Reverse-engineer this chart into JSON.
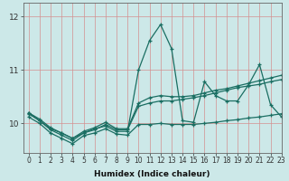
{
  "xlabel": "Humidex (Indice chaleur)",
  "xlim": [
    -0.5,
    23
  ],
  "ylim": [
    9.45,
    12.25
  ],
  "yticks": [
    10,
    11,
    12
  ],
  "xticks": [
    0,
    1,
    2,
    3,
    4,
    5,
    6,
    7,
    8,
    9,
    10,
    11,
    12,
    13,
    14,
    15,
    16,
    17,
    18,
    19,
    20,
    21,
    22,
    23
  ],
  "bg_color": "#cce8e8",
  "vgrid_color": "#d49090",
  "hgrid_color": "#d49090",
  "line_color": "#1a6e62",
  "line1": [
    10.2,
    10.05,
    9.9,
    9.82,
    9.72,
    9.82,
    9.9,
    9.95,
    9.85,
    9.85,
    11.0,
    11.55,
    11.85,
    11.4,
    10.05,
    10.02,
    10.78,
    10.52,
    10.42,
    10.42,
    10.72,
    11.1,
    10.35,
    10.12
  ],
  "line2": [
    10.2,
    10.08,
    9.92,
    9.82,
    9.72,
    9.85,
    9.92,
    10.02,
    9.9,
    9.9,
    10.38,
    10.48,
    10.52,
    10.5,
    10.5,
    10.52,
    10.57,
    10.62,
    10.65,
    10.7,
    10.75,
    10.8,
    10.85,
    10.9
  ],
  "line3": [
    10.18,
    10.05,
    9.88,
    9.78,
    9.68,
    9.82,
    9.88,
    9.98,
    9.88,
    9.88,
    10.32,
    10.38,
    10.42,
    10.42,
    10.45,
    10.48,
    10.52,
    10.57,
    10.62,
    10.67,
    10.7,
    10.73,
    10.78,
    10.82
  ],
  "line4": [
    10.12,
    10.0,
    9.82,
    9.72,
    9.62,
    9.77,
    9.82,
    9.9,
    9.8,
    9.78,
    9.98,
    9.98,
    10.0,
    9.98,
    9.98,
    9.98,
    10.0,
    10.02,
    10.05,
    10.07,
    10.1,
    10.12,
    10.15,
    10.18
  ],
  "marker_size": 3,
  "linewidth": 0.9,
  "tick_fontsize": 5.5,
  "xlabel_fontsize": 6.5
}
